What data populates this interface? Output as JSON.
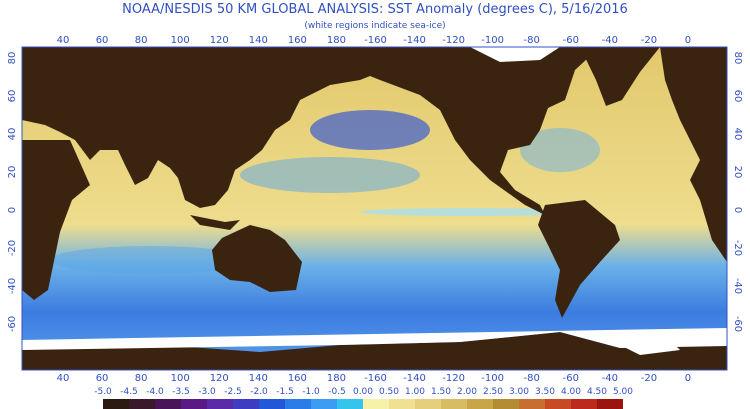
{
  "header": {
    "title": "NOAA/NESDIS 50 KM GLOBAL ANALYSIS: SST Anomaly (degrees C), 5/16/2016",
    "subtitle": "(white regions indicate sea-ice)"
  },
  "map": {
    "longitude_labels": [
      "40",
      "60",
      "80",
      "100",
      "120",
      "140",
      "160",
      "180",
      "-160",
      "-140",
      "-120",
      "-100",
      "-80",
      "-60",
      "-40",
      "-20",
      "0"
    ],
    "latitude_labels": [
      "80",
      "60",
      "40",
      "20",
      "0",
      "-20",
      "-40",
      "-60"
    ]
  },
  "colorbar": {
    "labels": [
      "-5.0",
      "-4.5",
      "-4.0",
      "-3.5",
      "-3.0",
      "-2.5",
      "-2.0",
      "-1.5",
      "-1.0",
      "-0.5",
      "0.00",
      "0.50",
      "1.00",
      "1.50",
      "2.00",
      "2.50",
      "3.00",
      "3.50",
      "4.00",
      "4.50",
      "5.00"
    ],
    "colors": [
      "#2a1a12",
      "#3a1a2a",
      "#4a1458",
      "#5a1a86",
      "#5a2aa8",
      "#3e3cc0",
      "#2258d8",
      "#2c7ce8",
      "#3c9cf4",
      "#34c4ec",
      "#f6f2a8",
      "#efe092",
      "#e6cf7c",
      "#d8bc62",
      "#c8a648",
      "#b48c34",
      "#c86e30",
      "#c84a24",
      "#bc2a1c",
      "#9c1410"
    ]
  }
}
